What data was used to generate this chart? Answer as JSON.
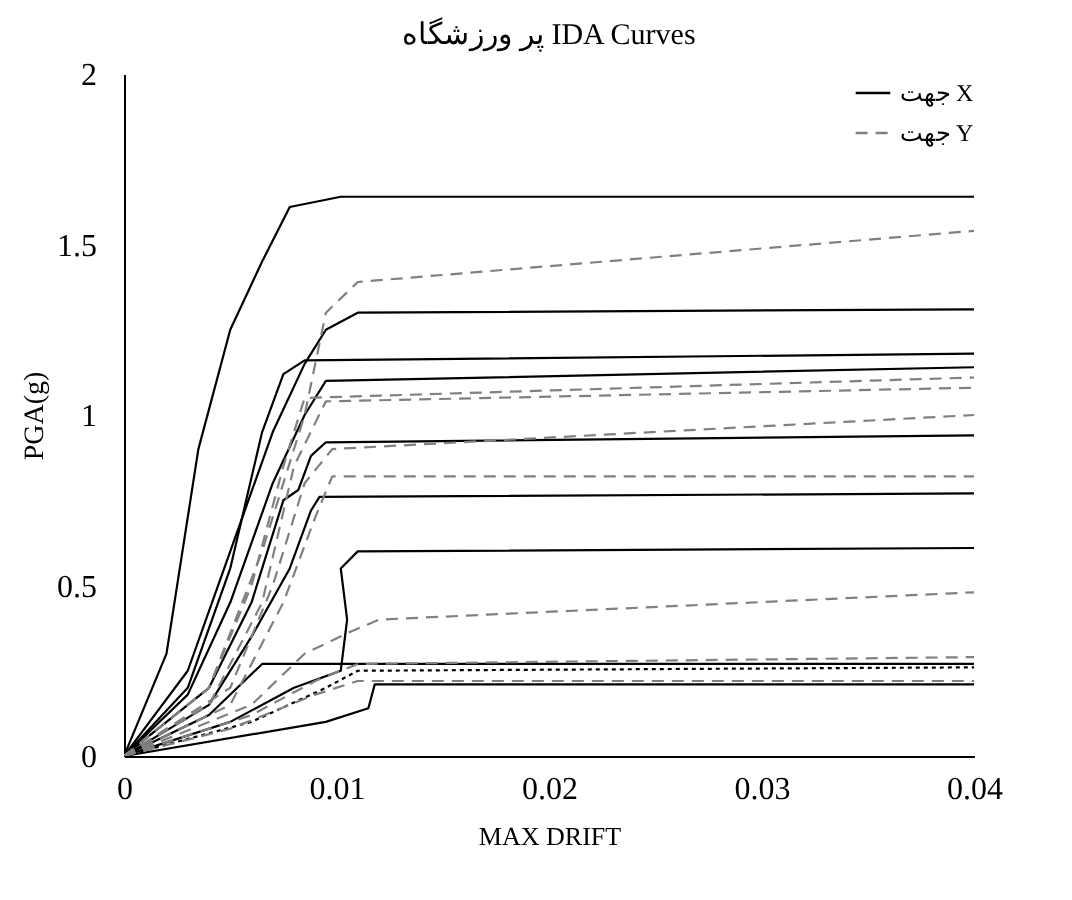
{
  "chart_data": {
    "type": "line",
    "title": "پر ورزشگاه IDA Curves",
    "xlabel": "MAX DRIFT",
    "ylabel": "PGA(g)",
    "xlim": [
      0,
      0.04
    ],
    "xticks": [
      0,
      0.01,
      0.02,
      0.03,
      0.04
    ],
    "ylim": [
      0,
      2
    ],
    "yticks": [
      0,
      0.5,
      1,
      1.5,
      2
    ],
    "grid": false,
    "legend": "top right",
    "marker": "none",
    "series": [
      {
        "name": "جهت X",
        "color": "#000000",
        "line_style": "solid",
        "x": [
          0,
          0.002,
          0.0035,
          0.005,
          0.0065,
          0.0078,
          0.0102,
          0.04
        ],
        "values": [
          0,
          0.3,
          0.9,
          1.25,
          1.45,
          1.61,
          1.64,
          1.64
        ]
      },
      {
        "color": "#000000",
        "line_style": "solid",
        "x": [
          0,
          0.003,
          0.005,
          0.007,
          0.0085,
          0.0095,
          0.011,
          0.04
        ],
        "values": [
          0,
          0.25,
          0.6,
          0.95,
          1.15,
          1.25,
          1.3,
          1.31
        ]
      },
      {
        "color": "#000000",
        "line_style": "solid",
        "x": [
          0,
          0.003,
          0.005,
          0.0065,
          0.0075,
          0.0085,
          0.04
        ],
        "values": [
          0,
          0.2,
          0.55,
          0.95,
          1.12,
          1.16,
          1.18
        ]
      },
      {
        "color": "#000000",
        "line_style": "solid",
        "x": [
          0,
          0.003,
          0.005,
          0.007,
          0.0085,
          0.0095,
          0.04
        ],
        "values": [
          0,
          0.18,
          0.45,
          0.8,
          1.0,
          1.1,
          1.14
        ]
      },
      {
        "color": "#000000",
        "line_style": "solid",
        "x": [
          0,
          0.004,
          0.006,
          0.0075,
          0.0082,
          0.0088,
          0.0095,
          0.04
        ],
        "values": [
          0,
          0.2,
          0.45,
          0.75,
          0.78,
          0.88,
          0.92,
          0.94
        ]
      },
      {
        "color": "#000000",
        "line_style": "solid",
        "x": [
          0,
          0.004,
          0.006,
          0.0078,
          0.0088,
          0.0092,
          0.04
        ],
        "values": [
          0,
          0.15,
          0.35,
          0.55,
          0.72,
          0.76,
          0.77
        ]
      },
      {
        "color": "#000000",
        "line_style": "solid",
        "x": [
          0,
          0.005,
          0.008,
          0.0102,
          0.0105,
          0.0102,
          0.011,
          0.04
        ],
        "values": [
          0,
          0.1,
          0.2,
          0.25,
          0.4,
          0.55,
          0.6,
          0.61
        ]
      },
      {
        "color": "#000000",
        "line_style": "solid",
        "x": [
          0,
          0.004,
          0.0065,
          0.04
        ],
        "values": [
          0,
          0.12,
          0.27,
          0.27
        ]
      },
      {
        "color": "#000000",
        "line_style": "dotted",
        "x": [
          0,
          0.006,
          0.0095,
          0.011,
          0.04
        ],
        "values": [
          0,
          0.1,
          0.2,
          0.25,
          0.26
        ]
      },
      {
        "color": "#000000",
        "line_style": "solid",
        "x": [
          0,
          0.0095,
          0.0115,
          0.0118,
          0.04
        ],
        "values": [
          0,
          0.1,
          0.14,
          0.21,
          0.21
        ]
      },
      {
        "name": "جهت Y",
        "color": "#808080",
        "line_style": "dashed",
        "x": [
          0,
          0.004,
          0.0065,
          0.0085,
          0.0095,
          0.011,
          0.04
        ],
        "values": [
          0,
          0.2,
          0.6,
          1.0,
          1.3,
          1.39,
          1.54
        ]
      },
      {
        "color": "#808080",
        "line_style": "dashed",
        "x": [
          0,
          0.004,
          0.006,
          0.0075,
          0.0085,
          0.04
        ],
        "values": [
          0,
          0.2,
          0.5,
          0.85,
          1.05,
          1.11
        ]
      },
      {
        "color": "#808080",
        "line_style": "dashed",
        "x": [
          0,
          0.004,
          0.0065,
          0.008,
          0.0095,
          0.04
        ],
        "values": [
          0,
          0.15,
          0.45,
          0.85,
          1.04,
          1.08
        ]
      },
      {
        "color": "#808080",
        "line_style": "dashed",
        "x": [
          0,
          0.005,
          0.007,
          0.0085,
          0.0098,
          0.04
        ],
        "values": [
          0,
          0.2,
          0.5,
          0.8,
          0.9,
          1.0
        ]
      },
      {
        "color": "#808080",
        "line_style": "dashed",
        "x": [
          0,
          0.005,
          0.0075,
          0.009,
          0.0098,
          0.04
        ],
        "values": [
          0,
          0.15,
          0.45,
          0.7,
          0.82,
          0.82
        ]
      },
      {
        "color": "#808080",
        "line_style": "dashed",
        "x": [
          0,
          0.006,
          0.0085,
          0.0105,
          0.012,
          0.04
        ],
        "values": [
          0,
          0.15,
          0.3,
          0.36,
          0.4,
          0.48
        ]
      },
      {
        "color": "#808080",
        "line_style": "dashed",
        "x": [
          0,
          0.006,
          0.009,
          0.011,
          0.04
        ],
        "values": [
          0,
          0.12,
          0.22,
          0.27,
          0.29
        ]
      },
      {
        "color": "#808080",
        "line_style": "dashed",
        "x": [
          0,
          0.005,
          0.009,
          0.011,
          0.04
        ],
        "values": [
          0,
          0.08,
          0.18,
          0.22,
          0.22
        ]
      }
    ]
  }
}
